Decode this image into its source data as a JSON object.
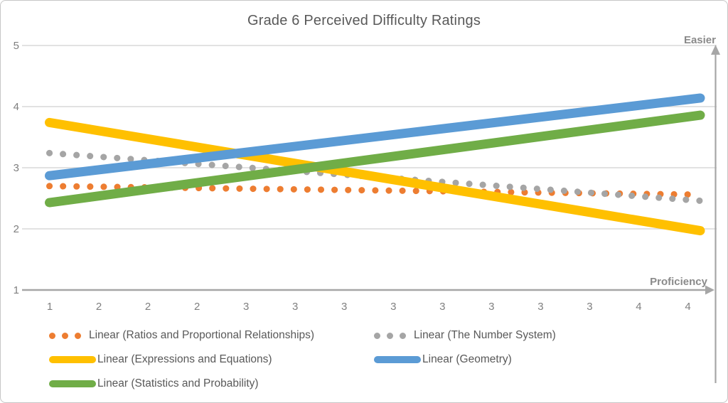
{
  "title": "Grade 6 Perceived Difficulty Ratings",
  "chart_data": {
    "type": "line",
    "title": "Grade 6 Perceived Difficulty Ratings",
    "subtitle": "",
    "x_categories": [
      "1",
      "2",
      "2",
      "2",
      "3",
      "3",
      "3",
      "3",
      "3",
      "3",
      "3",
      "3",
      "4",
      "4"
    ],
    "y_ticks": [
      1,
      2,
      3,
      4,
      5
    ],
    "ylim": [
      1,
      5
    ],
    "grid": true,
    "legend_position": "bottom",
    "annotations": {
      "easier": "Easier",
      "proficiency": "Proficiency"
    },
    "series": [
      {
        "name": "Linear (Ratios and Proportional Relationships)",
        "color": "#ED7D31",
        "style": "dotted",
        "values": {
          "start": 2.7,
          "end": 2.56
        }
      },
      {
        "name": "Linear (The Number System)",
        "color": "#A5A5A5",
        "style": "dotted",
        "values": {
          "start": 3.24,
          "end": 2.46
        }
      },
      {
        "name": "Linear (Expressions and Equations)",
        "color": "#FFC000",
        "style": "solid",
        "values": {
          "start": 3.74,
          "end": 1.97
        }
      },
      {
        "name": "Linear (Geometry)",
        "color": "#5B9BD5",
        "style": "solid",
        "values": {
          "start": 2.87,
          "end": 4.14
        }
      },
      {
        "name": "Linear (Statistics and Probability)",
        "color": "#70AD47",
        "style": "solid",
        "values": {
          "start": 2.43,
          "end": 3.86
        }
      }
    ],
    "axis_colors": {
      "gridline": "#D9D9D9",
      "axis": "#A6A6A6",
      "tick_label": "#7F7F7F"
    }
  }
}
